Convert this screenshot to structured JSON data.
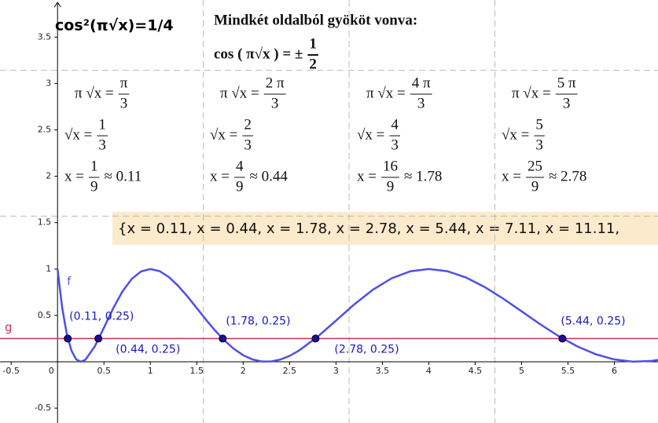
{
  "chart_data": {
    "type": "line",
    "title": "cos²(π√x)=1/4",
    "xlim": [
      -0.62,
      6.47
    ],
    "ylim": [
      -0.66,
      3.9
    ],
    "xticks": [
      -0.5,
      0,
      0.5,
      1,
      1.5,
      2,
      2.5,
      3,
      3.5,
      4,
      4.5,
      5,
      5.5,
      6
    ],
    "yticks": [
      -0.5,
      0.5,
      1,
      1.5,
      2,
      2.5,
      3,
      3.5
    ],
    "grid": true,
    "grid_x": [
      1.5708,
      3.1416,
      4.7124
    ],
    "grid_y": [
      1.5708,
      3.1416
    ],
    "series": [
      {
        "name": "f",
        "type": "line",
        "color": "#4f4fe8",
        "x": [
          0,
          0.05,
          0.1,
          0.15,
          0.2,
          0.25,
          0.3,
          0.4,
          0.5,
          0.6,
          0.7,
          0.8,
          0.9,
          1.0,
          1.1,
          1.2,
          1.3,
          1.4,
          1.5,
          1.6,
          1.7,
          1.8,
          1.9,
          2.0,
          2.1,
          2.2,
          2.3,
          2.4,
          2.5,
          2.6,
          2.8,
          3.0,
          3.2,
          3.4,
          3.6,
          3.8,
          4.0,
          4.2,
          4.4,
          4.6,
          4.8,
          5.0,
          5.2,
          5.4,
          5.6,
          5.8,
          6.0,
          6.2,
          6.4,
          6.5
        ],
        "values": [
          1,
          0.583,
          0.298,
          0.12,
          0.027,
          0,
          0.022,
          0.163,
          0.367,
          0.577,
          0.759,
          0.894,
          0.974,
          1,
          0.977,
          0.913,
          0.818,
          0.704,
          0.579,
          0.453,
          0.334,
          0.228,
          0.139,
          0.071,
          0.025,
          0.003,
          0.003,
          0.024,
          0.063,
          0.12,
          0.268,
          0.444,
          0.621,
          0.778,
          0.9,
          0.975,
          1,
          0.976,
          0.909,
          0.807,
          0.682,
          0.544,
          0.405,
          0.276,
          0.166,
          0.081,
          0.025,
          0.001,
          0.009,
          0.024
        ]
      },
      {
        "name": "g",
        "type": "hline",
        "color": "#cc3355",
        "values": [
          0.25
        ]
      },
      {
        "type": "scatter",
        "color": "#1010a0",
        "x": [
          0.11,
          0.44,
          1.78,
          2.78,
          5.44
        ],
        "values": [
          0.25,
          0.25,
          0.25,
          0.25,
          0.25
        ],
        "value_labels": [
          "(0.11, 0.25)",
          "(0.44, 0.25)",
          "(1.78, 0.25)",
          "(2.78, 0.25)",
          "(5.44, 0.25)"
        ]
      }
    ]
  },
  "annotations": {
    "heading": "Mindkét oldalból gyököt vonva:",
    "heading_formula": {
      "lhs": "cos ( π√x ) = ±",
      "num": "1",
      "den": "2"
    },
    "columns": [
      [
        {
          "lhs": "π √x =",
          "num": "π",
          "den": "3"
        },
        {
          "lhs": "√x =",
          "num": "1",
          "den": "3"
        },
        {
          "lhs": "x =",
          "num": "1",
          "den": "9",
          "rhs": "≈ 0.11"
        }
      ],
      [
        {
          "lhs": "π √x =",
          "num": "2 π",
          "den": "3"
        },
        {
          "lhs": "√x =",
          "num": "2",
          "den": "3"
        },
        {
          "lhs": "x =",
          "num": "4",
          "den": "9",
          "rhs": "≈ 0.44"
        }
      ],
      [
        {
          "lhs": "π √x =",
          "num": "4 π",
          "den": "3"
        },
        {
          "lhs": "√x =",
          "num": "4",
          "den": "3"
        },
        {
          "lhs": "x =",
          "num": "16",
          "den": "9",
          "rhs": "≈ 1.78"
        }
      ],
      [
        {
          "lhs": "π √x =",
          "num": "5 π",
          "den": "3"
        },
        {
          "lhs": "√x =",
          "num": "5",
          "den": "3"
        },
        {
          "lhs": "x =",
          "num": "25",
          "den": "9",
          "rhs": "≈ 2.78"
        }
      ]
    ],
    "solutions": "{x = 0.11, x = 0.44, x = 1.78, x = 2.78, x = 5.44, x = 7.11, x = 11.11,"
  }
}
